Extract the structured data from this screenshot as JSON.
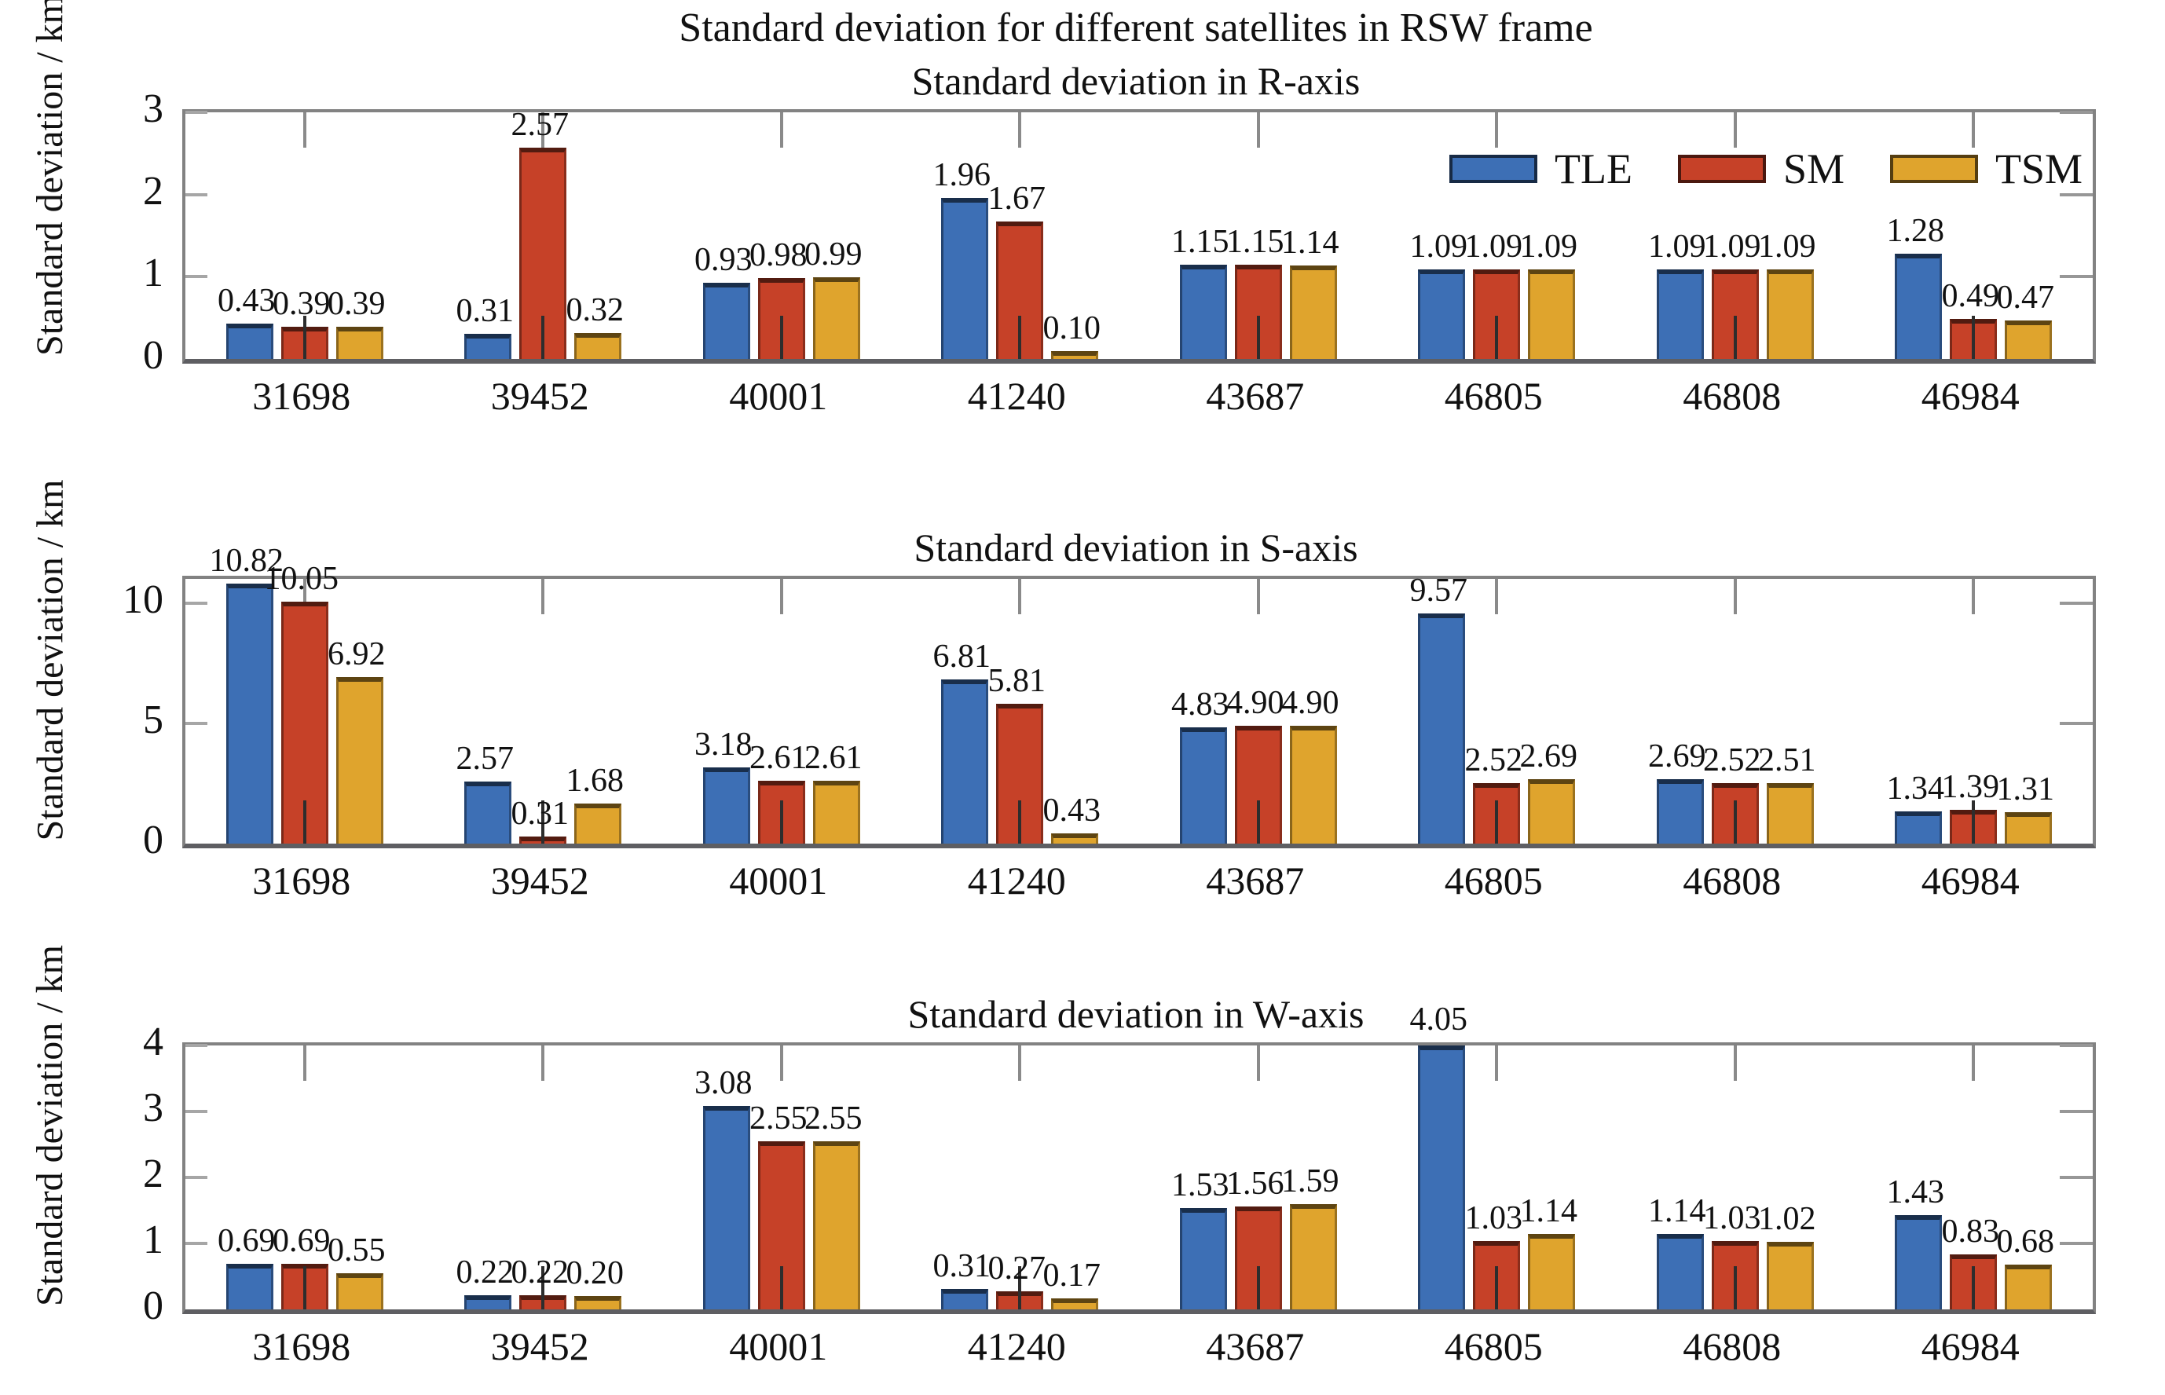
{
  "figure_title": "Standard deviation for different satellites in RSW frame",
  "legend": {
    "items": [
      {
        "label": "TLE",
        "color": "#3d6fb5"
      },
      {
        "label": "SM",
        "color": "#c64128"
      },
      {
        "label": "TSM",
        "color": "#dfa42d"
      }
    ]
  },
  "chart_data": [
    {
      "type": "bar",
      "title": "Standard deviation in R-axis",
      "ylabel": "Standard deviation / km",
      "categories": [
        "31698",
        "39452",
        "40001",
        "41240",
        "43687",
        "46805",
        "46808",
        "46984"
      ],
      "series": [
        {
          "name": "TLE",
          "color": "#3d6fb5",
          "values": [
            0.43,
            0.31,
            0.93,
            1.96,
            1.15,
            1.09,
            1.09,
            1.28
          ]
        },
        {
          "name": "SM",
          "color": "#c64128",
          "values": [
            0.39,
            2.57,
            0.98,
            1.67,
            1.15,
            1.09,
            1.09,
            0.49
          ]
        },
        {
          "name": "TSM",
          "color": "#dfa42d",
          "values": [
            0.39,
            0.32,
            0.99,
            0.1,
            1.14,
            1.09,
            1.09,
            0.47
          ]
        }
      ],
      "ylim": [
        0,
        3
      ],
      "yticks": [
        0,
        1,
        2,
        3
      ],
      "grid": false,
      "legend_position": "top-right-inside"
    },
    {
      "type": "bar",
      "title": "Standard deviation in S-axis",
      "ylabel": "Standard deviation / km",
      "categories": [
        "31698",
        "39452",
        "40001",
        "41240",
        "43687",
        "46805",
        "46808",
        "46984"
      ],
      "series": [
        {
          "name": "TLE",
          "color": "#3d6fb5",
          "values": [
            10.82,
            2.57,
            3.18,
            6.81,
            4.83,
            9.57,
            2.69,
            1.34
          ]
        },
        {
          "name": "SM",
          "color": "#c64128",
          "values": [
            10.05,
            0.31,
            2.61,
            5.81,
            4.9,
            2.52,
            2.52,
            1.39
          ]
        },
        {
          "name": "TSM",
          "color": "#dfa42d",
          "values": [
            6.92,
            1.68,
            2.61,
            0.43,
            4.9,
            2.69,
            2.51,
            1.31
          ]
        }
      ],
      "ylim": [
        0,
        11
      ],
      "yticks": [
        0,
        5,
        10
      ],
      "grid": false,
      "legend_position": "none"
    },
    {
      "type": "bar",
      "title": "Standard deviation in W-axis",
      "ylabel": "Standard deviation / km",
      "categories": [
        "31698",
        "39452",
        "40001",
        "41240",
        "43687",
        "46805",
        "46808",
        "46984"
      ],
      "series": [
        {
          "name": "TLE",
          "color": "#3d6fb5",
          "values": [
            0.69,
            0.22,
            3.08,
            0.31,
            1.53,
            4.05,
            1.14,
            1.43
          ]
        },
        {
          "name": "SM",
          "color": "#c64128",
          "values": [
            0.69,
            0.22,
            2.55,
            0.27,
            1.56,
            1.03,
            1.03,
            0.83
          ]
        },
        {
          "name": "TSM",
          "color": "#dfa42d",
          "values": [
            0.55,
            0.2,
            2.55,
            0.17,
            1.59,
            1.14,
            1.02,
            0.68
          ]
        }
      ],
      "ylim": [
        0,
        4
      ],
      "yticks": [
        0,
        1,
        2,
        3,
        4
      ],
      "grid": false,
      "legend_position": "none"
    }
  ]
}
